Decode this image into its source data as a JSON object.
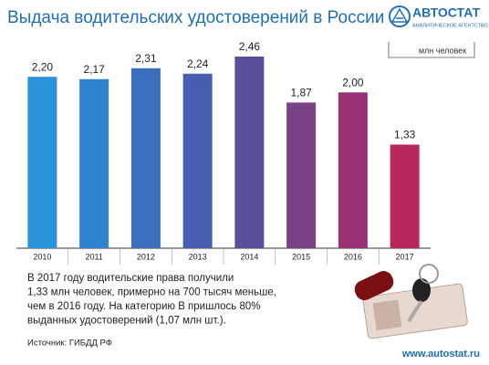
{
  "chart_data": {
    "type": "bar",
    "title": "Выдача водительских удостоверений в России",
    "unit_label": "млн человек",
    "categories": [
      "2010",
      "2011",
      "2012",
      "2013",
      "2014",
      "2015",
      "2016",
      "2017"
    ],
    "values": [
      2.2,
      2.17,
      2.31,
      2.24,
      2.46,
      1.87,
      2.0,
      1.33
    ],
    "value_labels": [
      "2,20",
      "2,17",
      "2,31",
      "2,24",
      "2,46",
      "1,87",
      "2,00",
      "1,33"
    ],
    "colors": [
      "#2b93dc",
      "#2f82cf",
      "#3a6fbd",
      "#475fae",
      "#58509d",
      "#7a4186",
      "#983274",
      "#b6285c"
    ],
    "description": [
      "В 2017 году водительские права получили",
      "1,33 млн человек, примерно на 700 тысяч меньше,",
      "чем в 2016 году. На категорию В пришлось 80%",
      "выданных удостоверений (1,07 млн шт.)."
    ],
    "source": "Источник: ГИБДД РФ"
  },
  "branding": {
    "name": "АВТОСТАТ",
    "tagline": "АНАЛИТИЧЕСКОЕ АГЕНТСТВО",
    "url": "www.autostat.ru"
  }
}
